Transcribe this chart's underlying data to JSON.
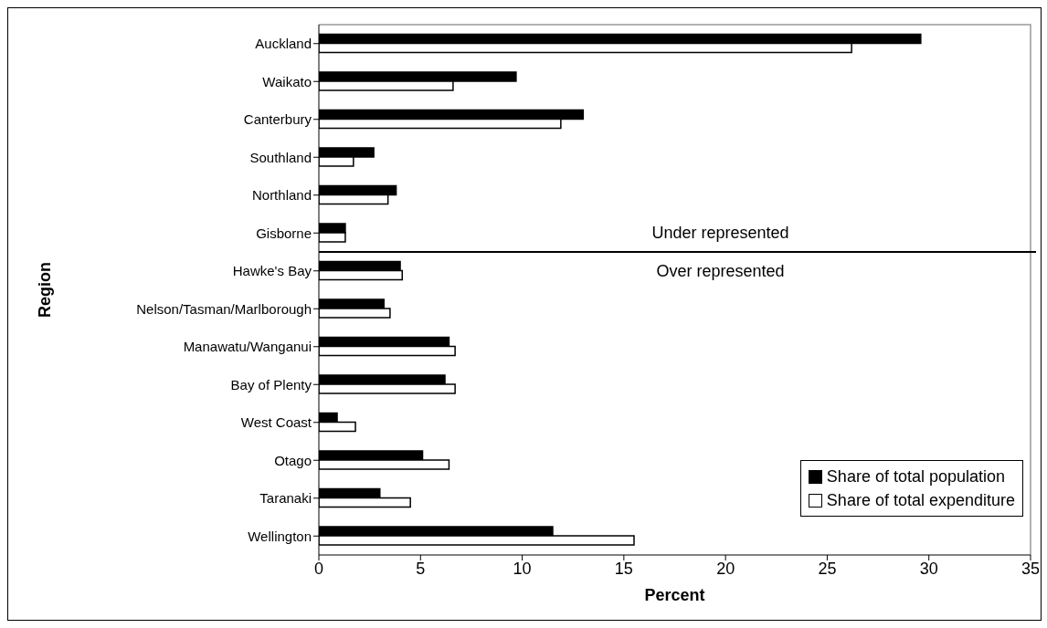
{
  "chart_data": {
    "type": "bar",
    "orientation": "horizontal",
    "xlabel": "Percent",
    "ylabel": "Region",
    "categories": [
      "Auckland",
      "Waikato",
      "Canterbury",
      "Southland",
      "Northland",
      "Gisborne",
      "Hawke's Bay",
      "Nelson/Tasman/Marlborough",
      "Manawatu/Wanganui",
      "Bay of Plenty",
      "West Coast",
      "Otago",
      "Taranaki",
      "Wellington"
    ],
    "series": [
      {
        "name": "Share of total population",
        "color": "#000000",
        "values": [
          29.6,
          9.7,
          13.0,
          2.7,
          3.8,
          1.3,
          4.0,
          3.2,
          6.4,
          6.2,
          0.9,
          5.1,
          3.0,
          11.5
        ]
      },
      {
        "name": "Share of total expenditure",
        "color": "#ffffff",
        "values": [
          26.2,
          6.6,
          11.9,
          1.7,
          3.4,
          1.3,
          4.1,
          3.5,
          6.7,
          6.7,
          1.8,
          6.4,
          4.5,
          15.5
        ]
      }
    ],
    "xlim": [
      0,
      35
    ],
    "xticks": [
      0,
      5,
      10,
      15,
      20,
      25,
      30,
      35
    ],
    "grid": false,
    "legend": "bottom right",
    "annotations": [
      "Under represented",
      "Over represented"
    ]
  }
}
